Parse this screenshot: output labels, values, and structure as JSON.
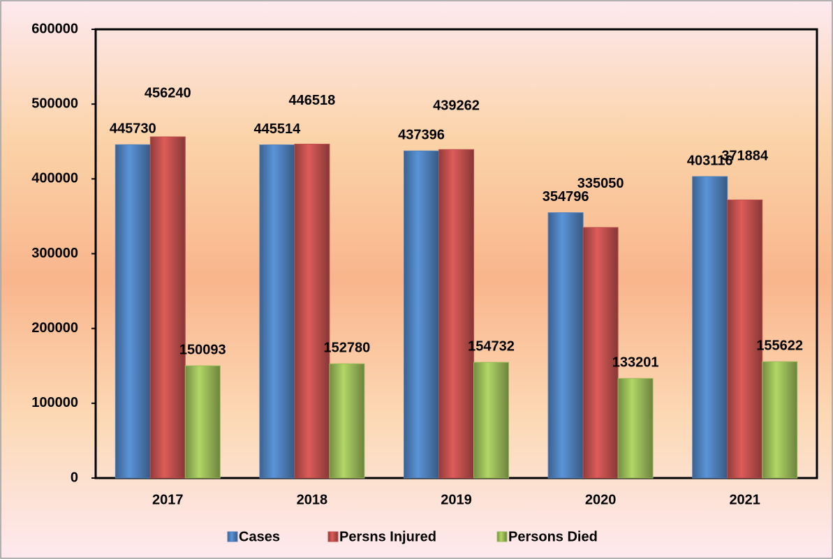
{
  "chart_data": {
    "type": "bar",
    "categories": [
      "2017",
      "2018",
      "2019",
      "2020",
      "2021"
    ],
    "series": [
      {
        "name": "Cases",
        "color": "#4f81bd",
        "values": [
          445730,
          445514,
          437396,
          354796,
          403116
        ]
      },
      {
        "name": "Persns Injured",
        "color": "#c0504d",
        "values": [
          456240,
          446518,
          439262,
          335050,
          371884
        ]
      },
      {
        "name": "Persons Died",
        "color": "#9bbb59",
        "values": [
          150093,
          152780,
          154732,
          133201,
          155622
        ]
      }
    ],
    "ylim": [
      0,
      600000
    ],
    "yticks": [
      0,
      100000,
      200000,
      300000,
      400000,
      500000,
      600000
    ],
    "grid": false,
    "legend": "bottom"
  }
}
